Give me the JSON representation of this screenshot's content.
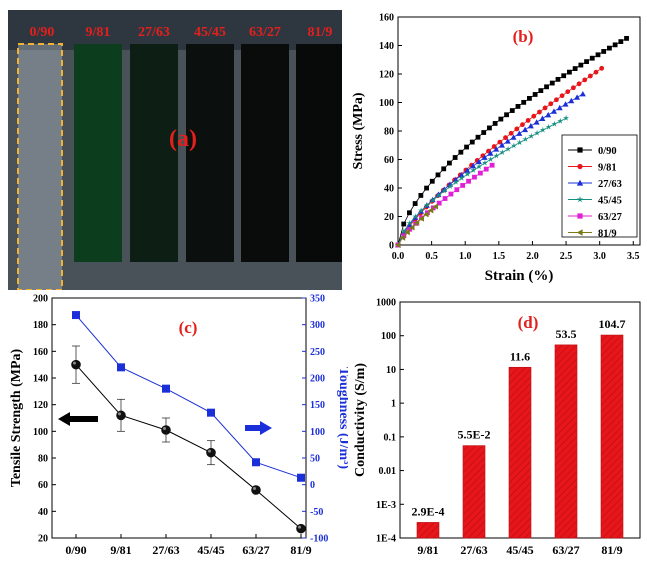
{
  "panel_a": {
    "label": "(a)",
    "samples": [
      {
        "label": "0/90",
        "color": "#c9d3dd"
      },
      {
        "label": "9/81",
        "color": "#0c3d1c"
      },
      {
        "label": "27/63",
        "color": "#0d1f14"
      },
      {
        "label": "45/45",
        "color": "#0b0f0d"
      },
      {
        "label": "63/27",
        "color": "#0a0b0b"
      },
      {
        "label": "81/9",
        "color": "#080909"
      }
    ]
  },
  "chart_data": [
    {
      "panel": "(b)",
      "type": "scatter",
      "xlabel": "Strain (%)",
      "ylabel": "Stress (MPa)",
      "xlim": [
        0,
        3.6
      ],
      "ylim": [
        0,
        160
      ],
      "xticks": [
        "0.0",
        "0.5",
        "1.0",
        "1.5",
        "2.0",
        "2.5",
        "3.0",
        "3.5"
      ],
      "yticks": [
        "0",
        "20",
        "40",
        "60",
        "80",
        "100",
        "120",
        "140",
        "160"
      ],
      "legend": "bottom-right",
      "series": [
        {
          "name": "0/90",
          "color": "#000000",
          "marker": "square",
          "end": [
            3.4,
            145
          ],
          "shape": 0.62
        },
        {
          "name": "9/81",
          "color": "#e8161b",
          "marker": "circle",
          "end": [
            3.03,
            124
          ],
          "shape": 0.78
        },
        {
          "name": "27/63",
          "color": "#1b2fd8",
          "marker": "triangle",
          "end": [
            2.75,
            106
          ],
          "shape": 0.72
        },
        {
          "name": "45/45",
          "color": "#148f7f",
          "marker": "star",
          "end": [
            2.5,
            89
          ],
          "shape": 0.66
        },
        {
          "name": "63/27",
          "color": "#e020d5",
          "marker": "square",
          "end": [
            1.4,
            56
          ],
          "shape": 0.78
        },
        {
          "name": "81/9",
          "color": "#7b7a17",
          "marker": "tri-left",
          "end": [
            0.56,
            27
          ],
          "shape": 0.8
        }
      ]
    },
    {
      "panel": "(c)",
      "type": "line",
      "categories": [
        "0/90",
        "9/81",
        "27/63",
        "45/45",
        "63/27",
        "81/9"
      ],
      "ylabel_left": "Tensile Strength (MPa)",
      "ylabel_right": "Toughness (J/m³)",
      "ylim_left": [
        20,
        200
      ],
      "ylim_right": [
        -100,
        350
      ],
      "yticks_left": [
        "20",
        "40",
        "60",
        "80",
        "100",
        "120",
        "140",
        "160",
        "180",
        "200"
      ],
      "yticks_right": [
        "-100",
        "-50",
        "0",
        "50",
        "100",
        "150",
        "200",
        "250",
        "300",
        "350"
      ],
      "series": [
        {
          "name": "Tensile Strength",
          "axis": "left",
          "color": "#000000",
          "values": [
            150,
            112,
            101,
            84,
            56,
            27
          ],
          "errors": [
            14,
            12,
            9,
            9,
            0,
            0
          ]
        },
        {
          "name": "Toughness",
          "axis": "right",
          "color": "#1b2fd8",
          "values": [
            318,
            220,
            180,
            135,
            42,
            13
          ]
        }
      ]
    },
    {
      "panel": "(d)",
      "type": "bar",
      "scale": "log",
      "categories": [
        "9/81",
        "27/63",
        "45/45",
        "63/27",
        "81/9"
      ],
      "values": [
        0.00029,
        0.055,
        11.6,
        53.5,
        104.7
      ],
      "data_labels": [
        "2.9E-4",
        "5.5E-2",
        "11.6",
        "53.5",
        "104.7"
      ],
      "ylabel": "Conductivity (S/m)",
      "ylim": [
        0.0001,
        1000
      ],
      "yticks": [
        "1E-4",
        "1E-3",
        "0.01",
        "0.1",
        "1",
        "10",
        "100",
        "1000"
      ],
      "bar_color": "#e8161b"
    }
  ]
}
